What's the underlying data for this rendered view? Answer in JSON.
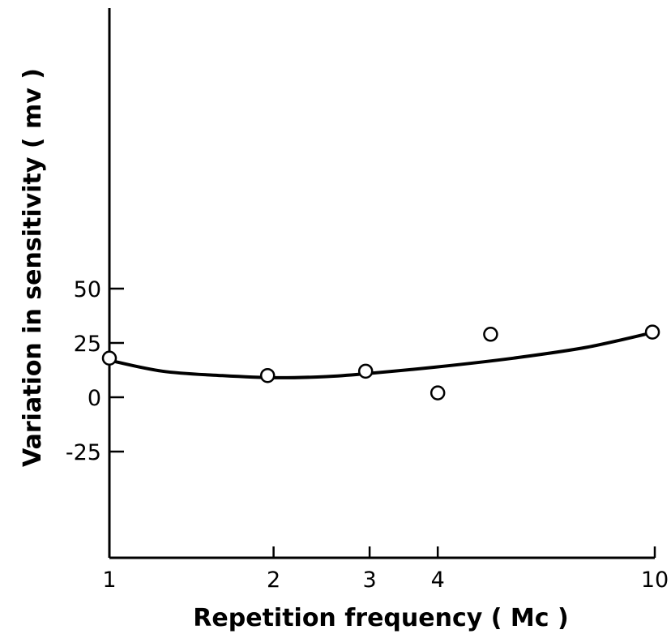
{
  "chart_data": {
    "type": "scatter",
    "title": "",
    "xlabel": "Repetition  frequency ( Mc )",
    "ylabel": "Variation  in  sensitivity ( mv )",
    "x_scale": "log",
    "xlim": [
      1,
      10
    ],
    "ylim": [
      -75,
      220
    ],
    "x_ticks": [
      {
        "value": 1,
        "label": "1"
      },
      {
        "value": 2,
        "label": "2"
      },
      {
        "value": 3,
        "label": "3"
      },
      {
        "value": 4,
        "label": "4"
      },
      {
        "value": 10,
        "label": "10"
      }
    ],
    "y_ticks": [
      {
        "value": 50,
        "label": "50"
      },
      {
        "value": 25,
        "label": "25"
      },
      {
        "value": 0,
        "label": "0"
      },
      {
        "value": -25,
        "label": "-25"
      }
    ],
    "grid": false,
    "legend": "none",
    "series": [
      {
        "marker": "open-circle",
        "points": [
          {
            "x": 1.0,
            "y": 18
          },
          {
            "x": 1.95,
            "y": 10
          },
          {
            "x": 2.95,
            "y": 12
          },
          {
            "x": 4.0,
            "y": 2
          },
          {
            "x": 5.0,
            "y": 29
          },
          {
            "x": 9.9,
            "y": 30
          }
        ]
      }
    ],
    "fit_curve": {
      "points": [
        {
          "x": 1.0,
          "y": 17
        },
        {
          "x": 1.25,
          "y": 12
        },
        {
          "x": 1.6,
          "y": 10
        },
        {
          "x": 2.0,
          "y": 9
        },
        {
          "x": 2.5,
          "y": 9.5
        },
        {
          "x": 3.0,
          "y": 11
        },
        {
          "x": 4.0,
          "y": 14
        },
        {
          "x": 5.5,
          "y": 18
        },
        {
          "x": 7.5,
          "y": 23
        },
        {
          "x": 10.0,
          "y": 30
        }
      ]
    }
  }
}
